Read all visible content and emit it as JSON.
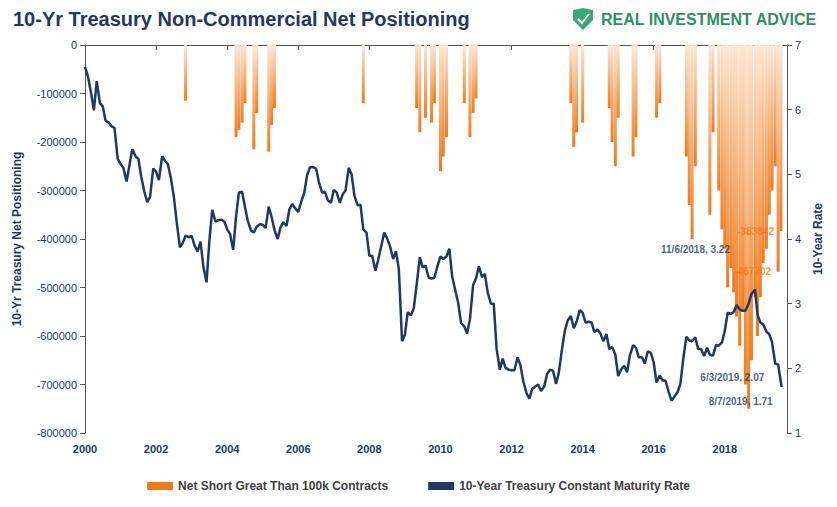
{
  "chart_data": {
    "type": "line",
    "title": "10-Yr Treasury Non-Commercial Net Positioning",
    "source": "REAL INVESTMENT ADVICE",
    "ylabel": "10-Yr Treasury Net Positioning",
    "y2label": "10-Year Rate",
    "xlim": [
      2000,
      2019.75
    ],
    "xticks": [
      2000,
      2002,
      2004,
      2006,
      2008,
      2010,
      2012,
      2014,
      2016,
      2018
    ],
    "ylim": [
      -800000,
      0
    ],
    "yticks": [
      -800000,
      -700000,
      -600000,
      -500000,
      -400000,
      -300000,
      -200000,
      -100000,
      0
    ],
    "y2lim": [
      1,
      7
    ],
    "y2ticks": [
      1,
      2,
      3,
      4,
      5,
      6,
      7
    ],
    "grid": false,
    "legend": "bottom",
    "series": [
      {
        "name": "Net Short Great Than 100k Contracts",
        "type": "bar",
        "axis": "y",
        "color": "#f07a1a",
        "x": [
          2002.83,
          2004.25,
          2004.33,
          2004.42,
          2004.5,
          2004.75,
          2004.83,
          2005.17,
          2005.25,
          2005.33,
          2007.83,
          2009.33,
          2009.42,
          2009.58,
          2009.75,
          2009.83,
          2010.0,
          2010.08,
          2010.17,
          2010.67,
          2010.83,
          2010.92,
          2011.0,
          2013.67,
          2013.75,
          2013.83,
          2014.0,
          2014.75,
          2014.83,
          2014.92,
          2015.0,
          2015.42,
          2015.5,
          2016.08,
          2016.17,
          2016.92,
          2017.0,
          2017.08,
          2017.17,
          2017.58,
          2017.67,
          2017.83,
          2017.92,
          2018.0,
          2018.08,
          2018.17,
          2018.25,
          2018.33,
          2018.42,
          2018.5,
          2018.58,
          2018.67,
          2018.75,
          2018.85,
          2018.92,
          2019.0,
          2019.08,
          2019.17,
          2019.25,
          2019.33,
          2019.42,
          2019.5,
          2019.58
        ],
        "values": [
          -115000,
          -190000,
          -175000,
          -160000,
          -120000,
          -215000,
          -140000,
          -220000,
          -165000,
          -130000,
          -120000,
          -130000,
          -180000,
          -150000,
          -160000,
          -120000,
          -260000,
          -230000,
          -190000,
          -120000,
          -190000,
          -140000,
          -110000,
          -120000,
          -210000,
          -180000,
          -160000,
          -130000,
          -200000,
          -250000,
          -150000,
          -230000,
          -190000,
          -150000,
          -120000,
          -230000,
          -330000,
          -400000,
          -250000,
          -350000,
          -180000,
          -300000,
          -380000,
          -420000,
          -500000,
          -460000,
          -510000,
          -560000,
          -620000,
          -550000,
          -700000,
          -750000,
          -650000,
          -520000,
          -600000,
          -520000,
          -450000,
          -420000,
          -350000,
          -300000,
          -250000,
          -467702,
          -383842
        ]
      },
      {
        "name": "10-Year Treasury Constant Maturity Rate",
        "type": "line",
        "axis": "y2",
        "color": "#203864",
        "x": [
          2000.0,
          2000.08,
          2000.17,
          2000.25,
          2000.33,
          2000.42,
          2000.5,
          2000.58,
          2000.67,
          2000.75,
          2000.83,
          2000.92,
          2001.0,
          2001.08,
          2001.17,
          2001.25,
          2001.33,
          2001.42,
          2001.5,
          2001.58,
          2001.67,
          2001.75,
          2001.83,
          2001.92,
          2002.0,
          2002.08,
          2002.17,
          2002.25,
          2002.33,
          2002.42,
          2002.5,
          2002.58,
          2002.67,
          2002.75,
          2002.83,
          2002.92,
          2003.0,
          2003.08,
          2003.17,
          2003.25,
          2003.33,
          2003.42,
          2003.5,
          2003.58,
          2003.67,
          2003.75,
          2003.83,
          2003.92,
          2004.0,
          2004.08,
          2004.17,
          2004.25,
          2004.33,
          2004.42,
          2004.5,
          2004.58,
          2004.67,
          2004.75,
          2004.83,
          2004.92,
          2005.0,
          2005.08,
          2005.17,
          2005.25,
          2005.33,
          2005.42,
          2005.5,
          2005.58,
          2005.67,
          2005.75,
          2005.83,
          2005.92,
          2006.0,
          2006.08,
          2006.17,
          2006.25,
          2006.33,
          2006.42,
          2006.5,
          2006.58,
          2006.67,
          2006.75,
          2006.83,
          2006.92,
          2007.0,
          2007.08,
          2007.17,
          2007.25,
          2007.33,
          2007.42,
          2007.5,
          2007.58,
          2007.67,
          2007.75,
          2007.83,
          2007.92,
          2008.0,
          2008.08,
          2008.17,
          2008.25,
          2008.33,
          2008.42,
          2008.5,
          2008.58,
          2008.67,
          2008.75,
          2008.83,
          2008.92,
          2009.0,
          2009.08,
          2009.17,
          2009.25,
          2009.33,
          2009.42,
          2009.5,
          2009.58,
          2009.67,
          2009.75,
          2009.83,
          2009.92,
          2010.0,
          2010.08,
          2010.17,
          2010.25,
          2010.33,
          2010.42,
          2010.5,
          2010.58,
          2010.67,
          2010.75,
          2010.83,
          2010.92,
          2011.0,
          2011.08,
          2011.17,
          2011.25,
          2011.33,
          2011.42,
          2011.5,
          2011.58,
          2011.67,
          2011.75,
          2011.83,
          2011.92,
          2012.0,
          2012.08,
          2012.17,
          2012.25,
          2012.33,
          2012.42,
          2012.5,
          2012.58,
          2012.67,
          2012.75,
          2012.83,
          2012.92,
          2013.0,
          2013.08,
          2013.17,
          2013.25,
          2013.33,
          2013.42,
          2013.5,
          2013.58,
          2013.67,
          2013.75,
          2013.83,
          2013.92,
          2014.0,
          2014.08,
          2014.17,
          2014.25,
          2014.33,
          2014.42,
          2014.5,
          2014.58,
          2014.67,
          2014.75,
          2014.83,
          2014.92,
          2015.0,
          2015.08,
          2015.17,
          2015.25,
          2015.33,
          2015.42,
          2015.5,
          2015.58,
          2015.67,
          2015.75,
          2015.83,
          2015.92,
          2016.0,
          2016.08,
          2016.17,
          2016.25,
          2016.33,
          2016.42,
          2016.5,
          2016.58,
          2016.67,
          2016.75,
          2016.83,
          2016.92,
          2017.0,
          2017.08,
          2017.17,
          2017.25,
          2017.33,
          2017.42,
          2017.5,
          2017.58,
          2017.67,
          2017.75,
          2017.83,
          2017.92,
          2018.0,
          2018.08,
          2018.17,
          2018.25,
          2018.33,
          2018.42,
          2018.5,
          2018.58,
          2018.67,
          2018.75,
          2018.85,
          2018.92,
          2019.0,
          2019.08,
          2019.17,
          2019.25,
          2019.33,
          2019.42,
          2019.5,
          2019.6
        ],
        "values": [
          6.66,
          6.52,
          6.26,
          5.99,
          6.44,
          6.1,
          6.05,
          5.83,
          5.8,
          5.74,
          5.72,
          5.24,
          5.16,
          5.1,
          4.89,
          5.14,
          5.39,
          5.28,
          5.24,
          4.97,
          4.73,
          4.57,
          4.65,
          5.09,
          5.04,
          4.91,
          5.28,
          5.21,
          5.16,
          4.93,
          4.65,
          4.26,
          3.87,
          3.94,
          4.05,
          4.03,
          4.05,
          3.9,
          3.81,
          3.96,
          3.57,
          3.33,
          3.98,
          4.45,
          4.27,
          4.29,
          4.3,
          4.27,
          4.15,
          4.08,
          3.83,
          4.35,
          4.72,
          4.73,
          4.5,
          4.28,
          4.13,
          4.1,
          4.19,
          4.23,
          4.22,
          4.17,
          4.5,
          4.34,
          4.14,
          4.0,
          4.18,
          4.26,
          4.2,
          4.46,
          4.54,
          4.47,
          4.42,
          4.57,
          4.72,
          4.99,
          5.11,
          5.11,
          5.09,
          4.88,
          4.72,
          4.73,
          4.6,
          4.56,
          4.76,
          4.72,
          4.56,
          4.69,
          4.75,
          5.1,
          5.0,
          4.67,
          4.52,
          4.53,
          4.15,
          4.1,
          3.74,
          3.74,
          3.51,
          3.68,
          3.88,
          4.1,
          4.01,
          3.89,
          3.69,
          3.81,
          3.53,
          2.42,
          2.52,
          2.87,
          2.82,
          2.93,
          3.29,
          3.72,
          3.56,
          3.59,
          3.4,
          3.39,
          3.4,
          3.59,
          3.73,
          3.69,
          3.73,
          3.85,
          3.42,
          3.2,
          3.01,
          2.7,
          2.65,
          2.54,
          2.76,
          3.29,
          3.39,
          3.58,
          3.41,
          3.46,
          3.17,
          3.0,
          3.0,
          2.3,
          1.98,
          2.15,
          2.01,
          1.98,
          1.97,
          1.97,
          2.17,
          2.05,
          1.8,
          1.62,
          1.53,
          1.68,
          1.72,
          1.75,
          1.65,
          1.72,
          1.91,
          1.98,
          1.96,
          1.76,
          1.93,
          2.3,
          2.58,
          2.74,
          2.81,
          2.62,
          2.72,
          2.9,
          2.86,
          2.71,
          2.72,
          2.71,
          2.56,
          2.6,
          2.54,
          2.42,
          2.53,
          2.3,
          2.33,
          2.21,
          1.88,
          1.98,
          2.04,
          1.94,
          2.2,
          2.36,
          2.32,
          2.17,
          2.17,
          2.07,
          2.26,
          2.24,
          2.09,
          1.78,
          1.89,
          1.81,
          1.81,
          1.64,
          1.5,
          1.56,
          1.63,
          1.76,
          2.14,
          2.49,
          2.43,
          2.42,
          2.48,
          2.3,
          2.3,
          2.19,
          2.32,
          2.21,
          2.2,
          2.36,
          2.35,
          2.4,
          2.58,
          2.86,
          2.84,
          2.87,
          2.98,
          2.91,
          2.89,
          2.89,
          3.0,
          3.15,
          3.22,
          2.83,
          2.71,
          2.68,
          2.57,
          2.53,
          2.4,
          2.07,
          2.06,
          1.71
        ]
      }
    ],
    "annotations": [
      {
        "text": "11/6/2018, 3.22",
        "x": 2018.85,
        "y": 3.22,
        "axis": "y2",
        "color": "#203864"
      },
      {
        "text": "6/3/2019, 2.07",
        "x": 2019.42,
        "y": 2.07,
        "axis": "y2",
        "color": "#203864"
      },
      {
        "text": "8/7/2019, 1.71",
        "x": 2019.6,
        "y": 1.71,
        "axis": "y2",
        "color": "#203864"
      },
      {
        "text": "-383842",
        "x": 2019.58,
        "y": -383842,
        "axis": "y",
        "color": "#f07a1a"
      },
      {
        "text": "-467702",
        "x": 2019.5,
        "y": -467702,
        "axis": "y",
        "color": "#f07a1a"
      }
    ]
  }
}
